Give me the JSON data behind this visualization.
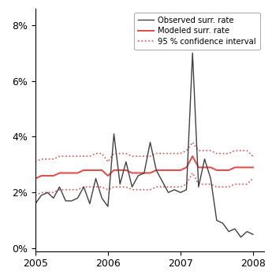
{
  "title": "",
  "xlabel": "",
  "ylabel": "",
  "xlim": [
    2005.0,
    2008.15
  ],
  "ylim": [
    -0.001,
    0.086
  ],
  "yticks": [
    0.0,
    0.02,
    0.04,
    0.06,
    0.08
  ],
  "ytick_labels": [
    "0%",
    "2%",
    "4%",
    "6%",
    "8%"
  ],
  "xticks": [
    2005,
    2006,
    2007,
    2008
  ],
  "xtick_labels": [
    "2005",
    "2006",
    "2007",
    "2008"
  ],
  "observed_color": "#404040",
  "modeled_color": "#e05050",
  "ci_color": "#e05050",
  "legend_labels": [
    "Observed surr. rate",
    "Modeled surr. rate",
    "95 % confidence interval"
  ],
  "background_color": "#ffffff",
  "x": [
    2005.0,
    2005.083,
    2005.167,
    2005.25,
    2005.333,
    2005.417,
    2005.5,
    2005.583,
    2005.667,
    2005.75,
    2005.833,
    2005.917,
    2006.0,
    2006.083,
    2006.167,
    2006.25,
    2006.333,
    2006.417,
    2006.5,
    2006.583,
    2006.667,
    2006.75,
    2006.833,
    2006.917,
    2007.0,
    2007.083,
    2007.167,
    2007.25,
    2007.333,
    2007.417,
    2007.5,
    2007.583,
    2007.667,
    2007.75,
    2007.833,
    2007.917,
    2008.0
  ],
  "observed": [
    0.016,
    0.019,
    0.02,
    0.018,
    0.022,
    0.017,
    0.017,
    0.018,
    0.022,
    0.016,
    0.025,
    0.018,
    0.015,
    0.041,
    0.023,
    0.031,
    0.022,
    0.026,
    0.027,
    0.038,
    0.028,
    0.024,
    0.02,
    0.021,
    0.02,
    0.021,
    0.07,
    0.022,
    0.032,
    0.025,
    0.01,
    0.009,
    0.006,
    0.007,
    0.004,
    0.006,
    0.005
  ],
  "modeled": [
    0.025,
    0.026,
    0.026,
    0.026,
    0.027,
    0.027,
    0.027,
    0.027,
    0.028,
    0.028,
    0.028,
    0.028,
    0.026,
    0.028,
    0.028,
    0.028,
    0.027,
    0.027,
    0.027,
    0.027,
    0.028,
    0.028,
    0.028,
    0.028,
    0.028,
    0.029,
    0.033,
    0.029,
    0.029,
    0.029,
    0.028,
    0.028,
    0.028,
    0.029,
    0.029,
    0.029,
    0.029
  ],
  "ci_upper": [
    0.031,
    0.032,
    0.032,
    0.032,
    0.033,
    0.033,
    0.033,
    0.033,
    0.033,
    0.033,
    0.034,
    0.034,
    0.031,
    0.034,
    0.034,
    0.034,
    0.033,
    0.033,
    0.033,
    0.033,
    0.034,
    0.034,
    0.034,
    0.034,
    0.034,
    0.035,
    0.038,
    0.035,
    0.035,
    0.035,
    0.034,
    0.034,
    0.034,
    0.035,
    0.035,
    0.035,
    0.033
  ],
  "ci_lower": [
    0.019,
    0.02,
    0.02,
    0.02,
    0.021,
    0.021,
    0.021,
    0.021,
    0.022,
    0.022,
    0.022,
    0.022,
    0.021,
    0.022,
    0.022,
    0.022,
    0.021,
    0.021,
    0.021,
    0.021,
    0.022,
    0.022,
    0.022,
    0.022,
    0.022,
    0.023,
    0.027,
    0.023,
    0.023,
    0.023,
    0.022,
    0.022,
    0.022,
    0.023,
    0.023,
    0.023,
    0.025
  ]
}
